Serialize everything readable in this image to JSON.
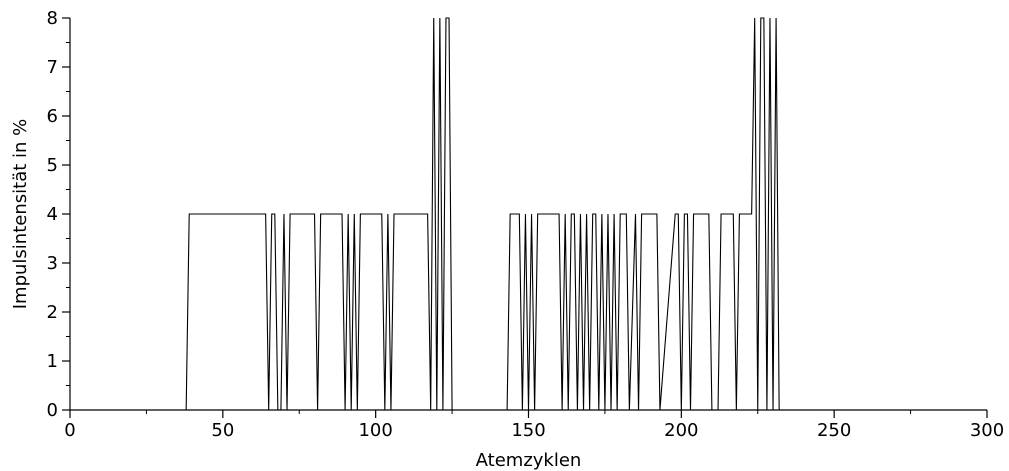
{
  "chart_data": {
    "type": "line",
    "xlabel": "Atemzyklen",
    "ylabel": "Impulsintensität in %",
    "xlim": [
      0,
      300
    ],
    "ylim": [
      0,
      8
    ],
    "xticks": [
      0,
      50,
      100,
      150,
      200,
      250,
      300
    ],
    "yticks": [
      0,
      1,
      2,
      3,
      4,
      5,
      6,
      7,
      8
    ],
    "grid": false,
    "line_color": "#000000",
    "series": [
      {
        "x": [
          0,
          38,
          39,
          64,
          65,
          66,
          67,
          68,
          69,
          70,
          71,
          72,
          80,
          81,
          82,
          89,
          90,
          91,
          92,
          93,
          94,
          95,
          96,
          102,
          103,
          104,
          105,
          106,
          117,
          118,
          119,
          120,
          121,
          122,
          123,
          124,
          125,
          126,
          143,
          144,
          147,
          148,
          149,
          150,
          151,
          152,
          153,
          154,
          160,
          161,
          162,
          163,
          164,
          165,
          166,
          167,
          168,
          169,
          170,
          171,
          172,
          173,
          174,
          175,
          176,
          177,
          178,
          179,
          180,
          181,
          182,
          183,
          185,
          186,
          187,
          192,
          193,
          198,
          199,
          200,
          201,
          202,
          203,
          204,
          209,
          210,
          212,
          213,
          217,
          218,
          219,
          223,
          224,
          225,
          226,
          227,
          228,
          229,
          230,
          231,
          232,
          275
        ],
        "y": [
          0,
          0,
          4,
          4,
          0,
          4,
          4,
          0,
          0,
          4,
          0,
          4,
          4,
          0,
          4,
          4,
          0,
          4,
          0,
          4,
          0,
          4,
          4,
          4,
          0,
          4,
          0,
          4,
          4,
          0,
          8,
          0,
          8,
          0,
          8,
          8,
          0,
          0,
          0,
          4,
          4,
          0,
          4,
          0,
          4,
          0,
          4,
          4,
          4,
          0,
          4,
          0,
          4,
          4,
          0,
          4,
          0,
          4,
          0,
          4,
          4,
          0,
          4,
          0,
          4,
          0,
          4,
          0,
          4,
          4,
          4,
          0,
          4,
          0,
          4,
          4,
          0,
          4,
          4,
          0,
          4,
          4,
          0,
          4,
          4,
          0,
          0,
          4,
          4,
          0,
          4,
          4,
          8,
          0,
          8,
          8,
          0,
          8,
          0,
          8,
          0,
          0
        ]
      }
    ]
  }
}
